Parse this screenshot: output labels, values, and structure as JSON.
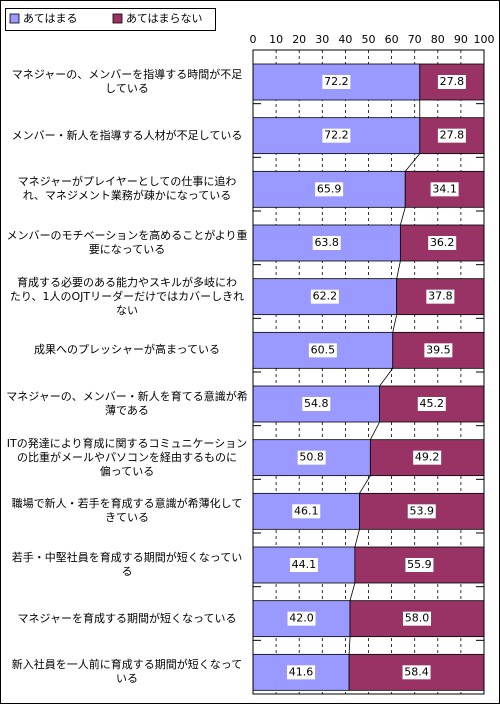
{
  "chart_data": {
    "type": "stacked-bar-horizontal",
    "categories": [
      "マネジャーの、メンバーを指導する時間が不足\nしている",
      "メンバー・新人を指導する人材が不足している",
      "マネジャーがプレイヤーとしての仕事に追わ\nれ、マネジメント業務が疎かになっている",
      "メンバーのモチベーションを高めることがより重\n要になっている",
      "育成する必要のある能力やスキルが多岐にわ\nたり、1人のOJTリーダーだけではカバーしきれ\nない",
      "成果へのプレッシャーが高まっている",
      "マネジャーの、メンバー・新人を育てる意識が希\n薄である",
      "ITの発達により育成に関するコミュニケーション\nの比重がメールやパソコンを経由するものに\n偏っている",
      "職場で新人・若手を育成する意識が希薄化して\nきている",
      "若手・中堅社員を育成する期間が短くなってい\nる",
      "マネジャーを育成する期間が短くなっている",
      "新入社員を一人前に育成する期間が短くなって\nいる"
    ],
    "series": [
      {
        "name": "あてはまる",
        "color": "#9999ff",
        "values": [
          72.2,
          72.2,
          65.9,
          63.8,
          62.2,
          60.5,
          54.8,
          50.8,
          46.1,
          44.1,
          42.0,
          41.6
        ],
        "value_labels": [
          "72.2",
          "72.2",
          "65.9",
          "63.8",
          "62.2",
          "60.5",
          "54.8",
          "50.8",
          "46.1",
          "44.1",
          "42.0",
          "41.6"
        ]
      },
      {
        "name": "あてはまらない",
        "color": "#993366",
        "values": [
          27.8,
          27.8,
          34.1,
          36.2,
          37.8,
          39.5,
          45.2,
          49.2,
          53.9,
          55.9,
          58.0,
          58.4
        ],
        "value_labels": [
          "27.8",
          "27.8",
          "34.1",
          "36.2",
          "37.8",
          "39.5",
          "45.2",
          "49.2",
          "53.9",
          "55.9",
          "58.0",
          "58.4"
        ]
      }
    ],
    "xlim": [
      0,
      100
    ],
    "xticks": [
      0,
      10,
      20,
      30,
      40,
      50,
      60,
      70,
      80,
      90,
      100
    ],
    "grid": true,
    "legend": "top-left"
  }
}
